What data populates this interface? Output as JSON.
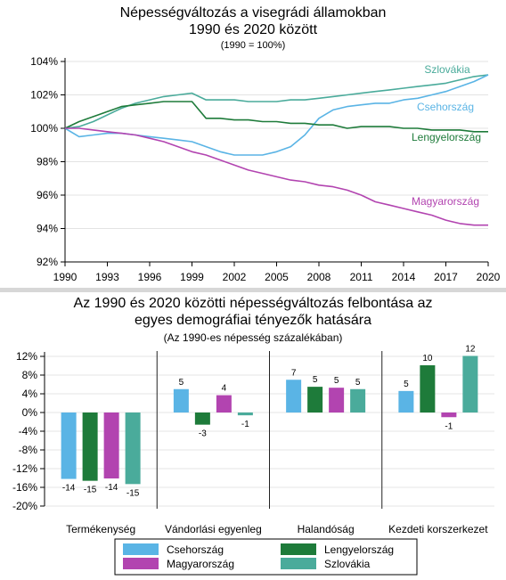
{
  "colors": {
    "csehorszag": "#5ab4e5",
    "lengyelorszag": "#1e7b3a",
    "magyarorszag": "#b244b0",
    "szlovakia": "#4aab9b",
    "divider": "#d7d7d7",
    "axis": "#000000"
  },
  "chart_data": [
    {
      "type": "line",
      "title": "Népességváltozás a visegrádi államokban\n1990 és 2020 között",
      "subtitle": "(1990 = 100%)",
      "x": [
        1990,
        1991,
        1992,
        1993,
        1994,
        1995,
        1996,
        1997,
        1998,
        1999,
        2000,
        2001,
        2002,
        2003,
        2004,
        2005,
        2006,
        2007,
        2008,
        2009,
        2010,
        2011,
        2012,
        2013,
        2014,
        2015,
        2016,
        2017,
        2018,
        2019,
        2020
      ],
      "xticks": [
        "1990",
        "1993",
        "1996",
        "1999",
        "2002",
        "2005",
        "2008",
        "2011",
        "2014",
        "2017",
        "2020"
      ],
      "yticks": [
        "92%",
        "94%",
        "96%",
        "98%",
        "100%",
        "102%",
        "104%"
      ],
      "ylim": [
        92,
        104
      ],
      "xlim": [
        1990,
        2020
      ],
      "grid": true,
      "series": [
        {
          "name": "Szlovákia",
          "color_key": "szlovakia",
          "values": [
            100.0,
            100.1,
            100.4,
            100.8,
            101.2,
            101.5,
            101.7,
            101.9,
            102.0,
            102.1,
            101.7,
            101.7,
            101.7,
            101.6,
            101.6,
            101.6,
            101.7,
            101.7,
            101.8,
            101.9,
            102.0,
            102.1,
            102.2,
            102.3,
            102.4,
            102.5,
            102.6,
            102.7,
            102.9,
            103.1,
            103.2
          ]
        },
        {
          "name": "Csehország",
          "color_key": "csehorszag",
          "values": [
            100.0,
            99.5,
            99.6,
            99.7,
            99.7,
            99.6,
            99.5,
            99.4,
            99.3,
            99.2,
            98.9,
            98.6,
            98.4,
            98.4,
            98.4,
            98.6,
            98.9,
            99.6,
            100.6,
            101.1,
            101.3,
            101.4,
            101.5,
            101.5,
            101.7,
            101.8,
            102.0,
            102.2,
            102.5,
            102.8,
            103.2
          ]
        },
        {
          "name": "Lengyelország",
          "color_key": "lengyelorszag",
          "values": [
            100.0,
            100.4,
            100.7,
            101.0,
            101.3,
            101.4,
            101.5,
            101.6,
            101.6,
            101.6,
            100.6,
            100.6,
            100.5,
            100.5,
            100.4,
            100.4,
            100.3,
            100.3,
            100.2,
            100.2,
            100.0,
            100.1,
            100.1,
            100.1,
            100.0,
            100.0,
            99.9,
            99.9,
            99.9,
            99.8,
            99.8
          ]
        },
        {
          "name": "Magyarország",
          "color_key": "magyarorszag",
          "values": [
            100.0,
            100.0,
            99.9,
            99.8,
            99.7,
            99.6,
            99.4,
            99.2,
            98.9,
            98.6,
            98.4,
            98.1,
            97.8,
            97.5,
            97.3,
            97.1,
            96.9,
            96.8,
            96.6,
            96.5,
            96.3,
            96.0,
            95.6,
            95.4,
            95.2,
            95.0,
            94.8,
            94.5,
            94.3,
            94.2,
            94.2
          ]
        }
      ]
    },
    {
      "type": "bar",
      "title": "Az 1990 és 2020 közötti népességváltozás felbontása az\negyes demográfiai tényezők hatására",
      "subtitle": "(Az 1990-es népesség százalékában)",
      "categories": [
        "Termékenység",
        "Vándorlási egyenleg",
        "Halandóság",
        "Kezdeti korszerkezet"
      ],
      "yticks": [
        "12%",
        "8%",
        "4%",
        "0%",
        "-4%",
        "-8%",
        "-12%",
        "-16%",
        "-20%"
      ],
      "ylim": [
        -20,
        12
      ],
      "series": [
        {
          "name": "Csehország",
          "color_key": "csehorszag",
          "values": [
            -14.2,
            5.0,
            7.0,
            4.6
          ],
          "labels": [
            "-14",
            "5",
            "7",
            "5"
          ]
        },
        {
          "name": "Lengyelország",
          "color_key": "lengyelorszag",
          "values": [
            -14.6,
            -2.6,
            5.5,
            10.1
          ],
          "labels": [
            "-15",
            "-3",
            "5",
            "10"
          ]
        },
        {
          "name": "Magyarország",
          "color_key": "magyarorszag",
          "values": [
            -14.1,
            3.7,
            5.3,
            -1.0
          ],
          "labels": [
            "-14",
            "4",
            "5",
            "-1"
          ]
        },
        {
          "name": "Szlovákia",
          "color_key": "szlovakia",
          "values": [
            -15.3,
            -0.6,
            5.0,
            12.1
          ],
          "labels": [
            "-15",
            "-1",
            "5",
            "12"
          ]
        }
      ],
      "legend": {
        "placement": "bottom",
        "items": [
          {
            "label": "Csehország",
            "color_key": "csehorszag"
          },
          {
            "label": "Lengyelország",
            "color_key": "lengyelorszag"
          },
          {
            "label": "Magyarország",
            "color_key": "magyarorszag"
          },
          {
            "label": "Szlovákia",
            "color_key": "szlovakia"
          }
        ]
      }
    }
  ]
}
